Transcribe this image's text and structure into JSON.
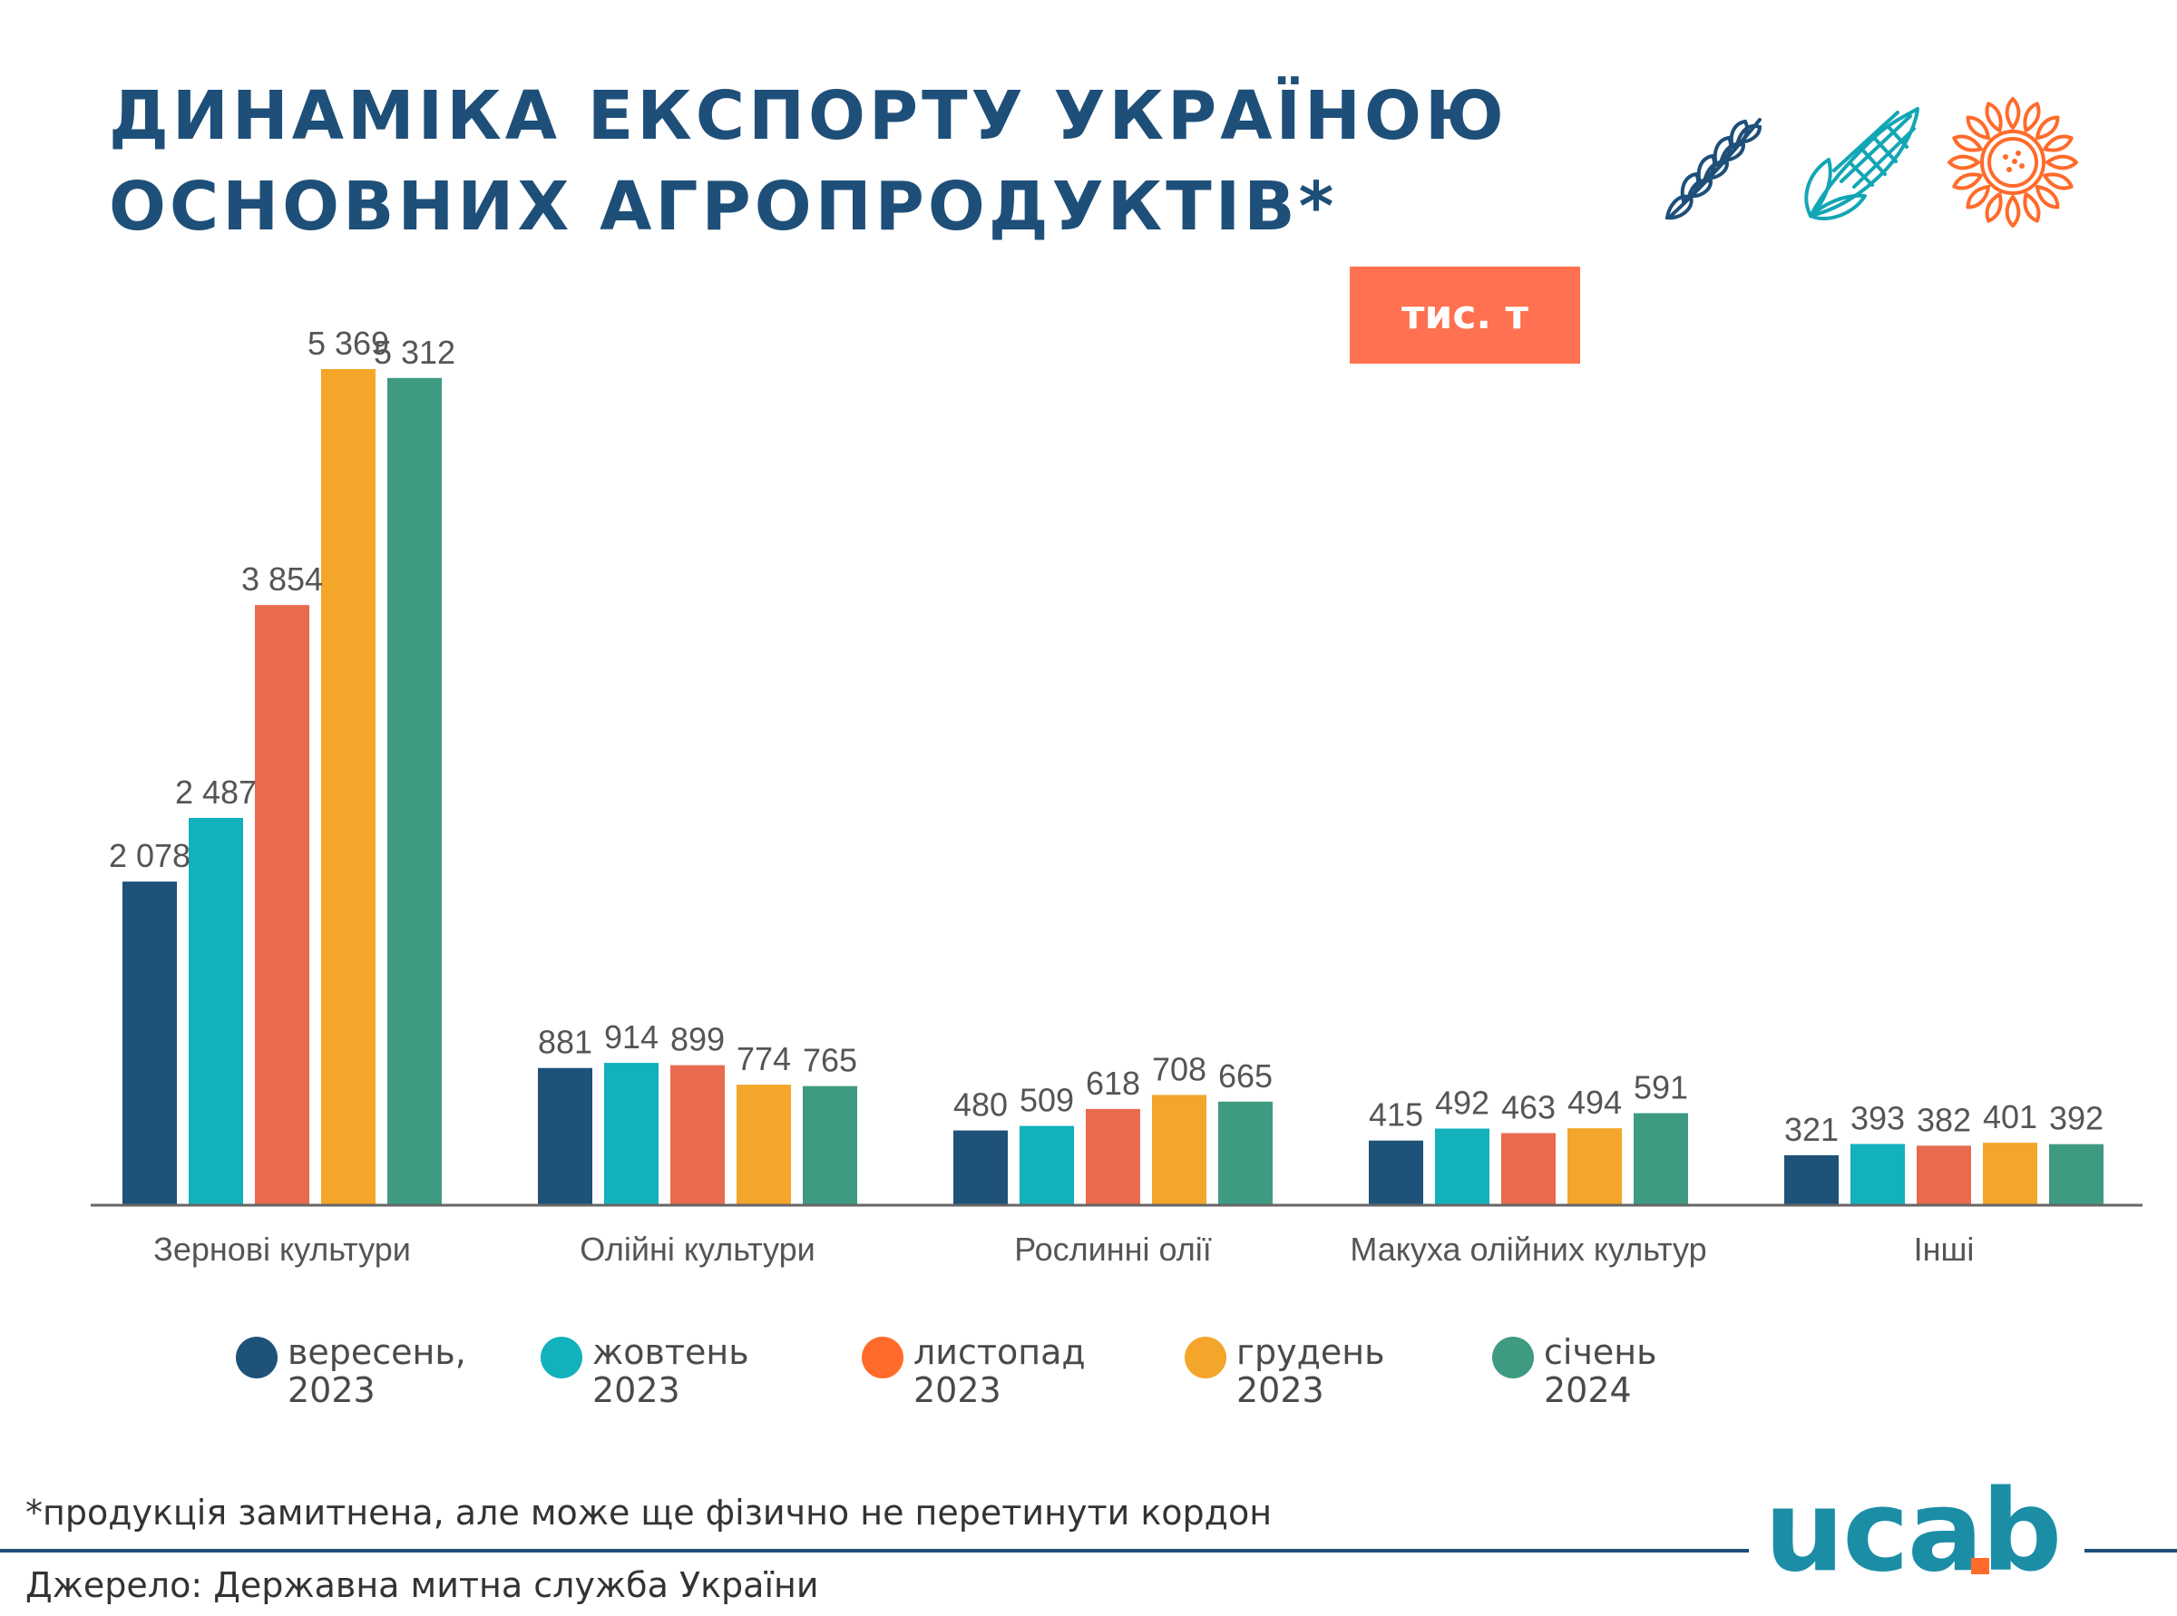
{
  "title": "ДИНАМІКА ЕКСПОРТУ УКРАЇНОЮ\nОСНОВНИХ АГРОПРОДУКТІВ*",
  "unit": "тис. т",
  "icons": [
    "wheat-icon",
    "corn-icon",
    "sunflower-icon"
  ],
  "colors": {
    "title": "#1e4f79",
    "badge": "#ff7150",
    "wheat": "#1e4f79",
    "corn": "#12a6b5",
    "sunflower": "#ff6b2a",
    "logo": "#1b8ea6",
    "logo_accent": "#ff6b2a"
  },
  "chart_data": {
    "type": "bar",
    "categories": [
      "Зернові культури",
      "Олійні культури",
      "Рослинні олії",
      "Макуха олійних культур",
      "Інші"
    ],
    "series": [
      {
        "name": "вересень, 2023",
        "color": "#1f5279",
        "values": [
          2078,
          881,
          480,
          415,
          321
        ],
        "labels": [
          "2 078",
          "881",
          "480",
          "415",
          "321"
        ]
      },
      {
        "name": "жовтень 2023",
        "color": "#12b1bc",
        "values": [
          2487,
          914,
          509,
          492,
          393
        ],
        "labels": [
          "2 487",
          "914",
          "509",
          "492",
          "393"
        ]
      },
      {
        "name": "листопад 2023",
        "color": "#e86b4e",
        "values": [
          3854,
          899,
          618,
          463,
          382
        ],
        "labels": [
          "3 854",
          "899",
          "618",
          "463",
          "382"
        ]
      },
      {
        "name": "грудень 2023",
        "color": "#f4a62a",
        "values": [
          5369,
          774,
          708,
          494,
          401
        ],
        "labels": [
          "5 369",
          "774",
          "708",
          "494",
          "401"
        ]
      },
      {
        "name": "січень 2024",
        "color": "#3f9a82",
        "values": [
          5312,
          765,
          665,
          591,
          392
        ],
        "labels": [
          "5 312",
          "765",
          "665",
          "591",
          "392"
        ]
      }
    ],
    "ylim": [
      0,
      5369
    ],
    "legend_position": "bottom",
    "grid": false
  },
  "legend": [
    {
      "label": "вересень,\n2023",
      "color": "#1f5279"
    },
    {
      "label": "жовтень\n2023",
      "color": "#12b1bc"
    },
    {
      "label": "листопад\n2023",
      "color": "#ff6b2a"
    },
    {
      "label": "грудень\n2023",
      "color": "#f4a62a"
    },
    {
      "label": "січень\n2024",
      "color": "#3f9a82"
    }
  ],
  "footnote": "*продукція замитнена, але може ще фізично не перетинути кордон",
  "source": "Джерело: Державна митна служба України",
  "logo_text": "ucab"
}
